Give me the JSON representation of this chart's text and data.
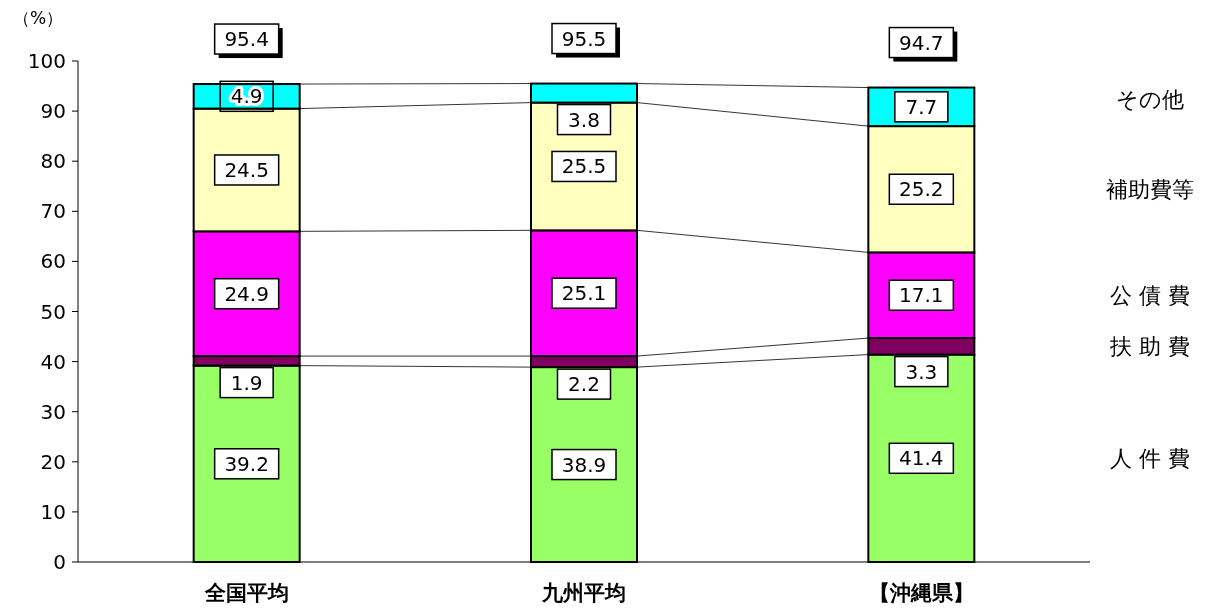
{
  "chart_data": {
    "type": "bar",
    "stacked": true,
    "ylabel": "（%）",
    "categories": [
      "全国平均",
      "九州平均",
      "【沖縄県】"
    ],
    "series": [
      {
        "name": "人 件 費",
        "color": "#99ff66",
        "values": [
          39.2,
          38.9,
          41.4
        ]
      },
      {
        "name": "扶 助 費",
        "color": "#800060",
        "values": [
          1.9,
          2.2,
          3.3
        ]
      },
      {
        "name": "公 債 費",
        "color": "#ff00ff",
        "values": [
          24.9,
          25.1,
          17.1
        ]
      },
      {
        "name": "補助費等",
        "color": "#ffffc0",
        "values": [
          24.5,
          25.5,
          25.2
        ]
      },
      {
        "name": "その他",
        "color": "#00ffff",
        "values": [
          4.9,
          3.8,
          7.7
        ]
      }
    ],
    "totals": [
      "95.4",
      "95.5",
      "94.7"
    ],
    "data_labels": true,
    "ylim": [
      0,
      100
    ],
    "yticks": [
      0,
      10,
      20,
      30,
      40,
      50,
      60,
      70,
      80,
      90,
      100
    ]
  }
}
